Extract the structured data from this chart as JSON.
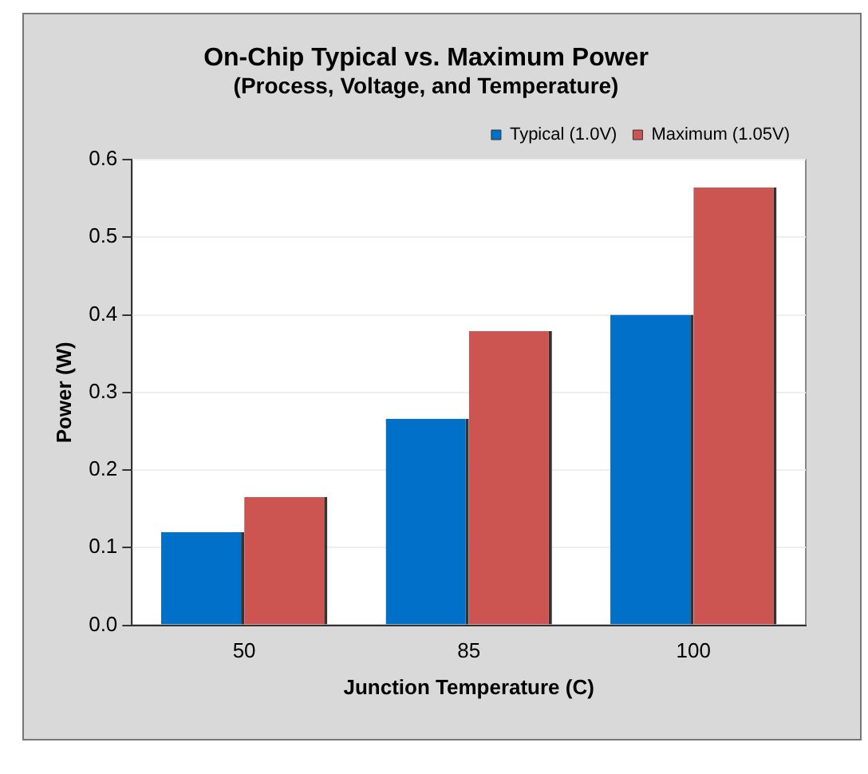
{
  "chart_data": {
    "type": "bar",
    "title": "On-Chip Typical vs. Maximum Power",
    "subtitle": "(Process, Voltage, and Temperature)",
    "xlabel": "Junction Temperature (C)",
    "ylabel": "Power (W)",
    "categories": [
      "50",
      "85",
      "100"
    ],
    "series": [
      {
        "name": "Typical (1.0V)",
        "color": "#0070c8",
        "values": [
          0.12,
          0.266,
          0.4
        ]
      },
      {
        "name": "Maximum (1.05V)",
        "color": "#cc5552",
        "values": [
          0.165,
          0.379,
          0.564
        ]
      }
    ],
    "ylim": [
      0,
      0.6
    ],
    "yticks": [
      {
        "value": 0,
        "label": "0.0"
      },
      {
        "value": 0.1,
        "label": "0.1"
      },
      {
        "value": 0.2,
        "label": "0.2"
      },
      {
        "value": 0.3,
        "label": "0.3"
      },
      {
        "value": 0.4,
        "label": "0.4"
      },
      {
        "value": 0.5,
        "label": "0.5"
      },
      {
        "value": 0.6,
        "label": "0.6"
      }
    ],
    "grid": "y",
    "legend": "top right"
  }
}
